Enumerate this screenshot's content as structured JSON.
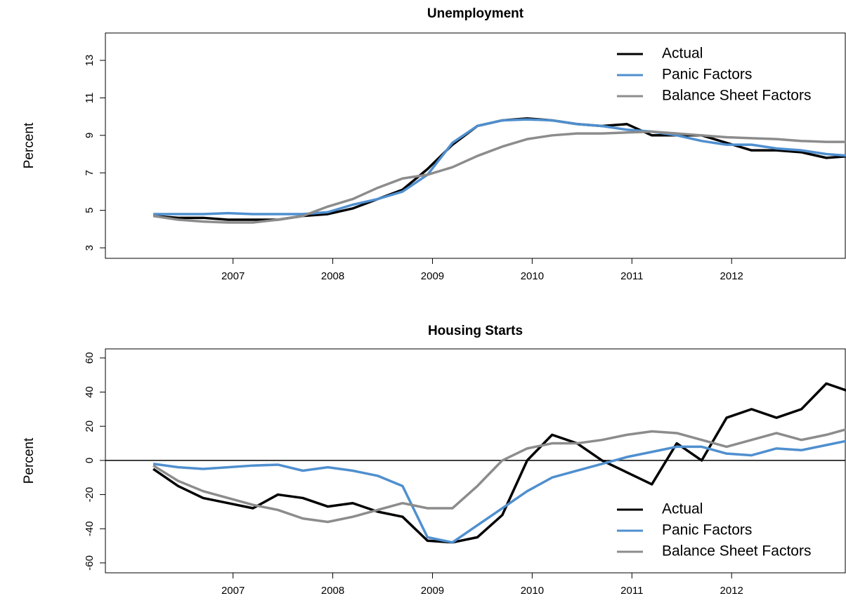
{
  "chart_data": [
    {
      "type": "line",
      "title": "Unemployment",
      "y_label": "Percent",
      "legend": "top-right",
      "x": [
        2006.2,
        2006.45,
        2006.7,
        2006.95,
        2007.2,
        2007.45,
        2007.7,
        2007.95,
        2008.2,
        2008.45,
        2008.7,
        2008.95,
        2009.2,
        2009.45,
        2009.7,
        2009.95,
        2010.2,
        2010.45,
        2010.7,
        2010.95,
        2011.2,
        2011.45,
        2011.7,
        2011.95,
        2012.2,
        2012.45,
        2012.7,
        2012.95,
        2013.2
      ],
      "series": [
        {
          "name": "Actual",
          "color": "#000000",
          "values": [
            4.7,
            4.6,
            4.6,
            4.5,
            4.5,
            4.5,
            4.7,
            4.8,
            5.1,
            5.6,
            6.1,
            7.2,
            8.5,
            9.5,
            9.8,
            9.9,
            9.8,
            9.6,
            9.5,
            9.6,
            9.0,
            9.0,
            9.0,
            8.6,
            8.2,
            8.2,
            8.1,
            7.8,
            7.9
          ]
        },
        {
          "name": "Panic Factors",
          "color": "#4f8fcf",
          "values": [
            4.8,
            4.8,
            4.8,
            4.85,
            4.8,
            4.8,
            4.8,
            4.9,
            5.3,
            5.6,
            6.0,
            6.9,
            8.6,
            9.5,
            9.8,
            9.85,
            9.8,
            9.6,
            9.5,
            9.3,
            9.2,
            9.0,
            8.7,
            8.5,
            8.5,
            8.3,
            8.2,
            8.0,
            7.9
          ]
        },
        {
          "name": "Balance Sheet Factors",
          "color": "#8c8c8c",
          "values": [
            4.7,
            4.5,
            4.4,
            4.35,
            4.35,
            4.5,
            4.7,
            5.2,
            5.6,
            6.2,
            6.7,
            6.9,
            7.3,
            7.9,
            8.4,
            8.8,
            9.0,
            9.1,
            9.1,
            9.15,
            9.2,
            9.1,
            9.0,
            8.9,
            8.85,
            8.8,
            8.7,
            8.65,
            8.65
          ]
        }
      ],
      "xlim": [
        2005.72,
        2013.14
      ],
      "xticks": [
        2007,
        2008,
        2009,
        2010,
        2011,
        2012
      ],
      "ylim": [
        2.44,
        14.46
      ],
      "yticks": [
        3,
        5,
        7,
        9,
        11,
        13
      ]
    },
    {
      "type": "line",
      "title": "Housing Starts",
      "y_label": "Percent",
      "legend": "bottom-right",
      "hline": 0,
      "x": [
        2006.2,
        2006.45,
        2006.7,
        2006.95,
        2007.2,
        2007.45,
        2007.7,
        2007.95,
        2008.2,
        2008.45,
        2008.7,
        2008.95,
        2009.2,
        2009.45,
        2009.7,
        2009.95,
        2010.2,
        2010.45,
        2010.7,
        2010.95,
        2011.2,
        2011.45,
        2011.7,
        2011.95,
        2012.2,
        2012.45,
        2012.7,
        2012.95,
        2013.2
      ],
      "series": [
        {
          "name": "Actual",
          "color": "#000000",
          "values": [
            -5,
            -15,
            -22,
            -25,
            -28,
            -20,
            -22,
            -27,
            -25,
            -30,
            -33,
            -47,
            -48,
            -45,
            -32,
            0,
            15,
            10,
            0,
            -7,
            -14,
            10,
            0,
            25,
            30,
            25,
            30,
            45,
            40
          ]
        },
        {
          "name": "Panic Factors",
          "color": "#4f8fcf",
          "values": [
            -2,
            -4,
            -5,
            -4,
            -3,
            -2.5,
            -6,
            -4,
            -6,
            -9,
            -15,
            -45,
            -48,
            -38,
            -28,
            -18,
            -10,
            -6,
            -2,
            2,
            5,
            8,
            8,
            4,
            3,
            7,
            6,
            9,
            12
          ]
        },
        {
          "name": "Balance Sheet Factors",
          "color": "#8c8c8c",
          "values": [
            -3,
            -12,
            -18,
            -22,
            -26,
            -29,
            -34,
            -36,
            -33,
            -29,
            -25,
            -28,
            -28,
            -15,
            0,
            7,
            10,
            10,
            12,
            15,
            17,
            16,
            12,
            8,
            12,
            16,
            12,
            15,
            19
          ]
        }
      ],
      "xlim": [
        2005.72,
        2013.14
      ],
      "xticks": [
        2007,
        2008,
        2009,
        2010,
        2011,
        2012
      ],
      "ylim": [
        -65.8,
        65.3
      ],
      "yticks": [
        -60,
        -40,
        -20,
        0,
        20,
        40,
        60
      ]
    }
  ]
}
